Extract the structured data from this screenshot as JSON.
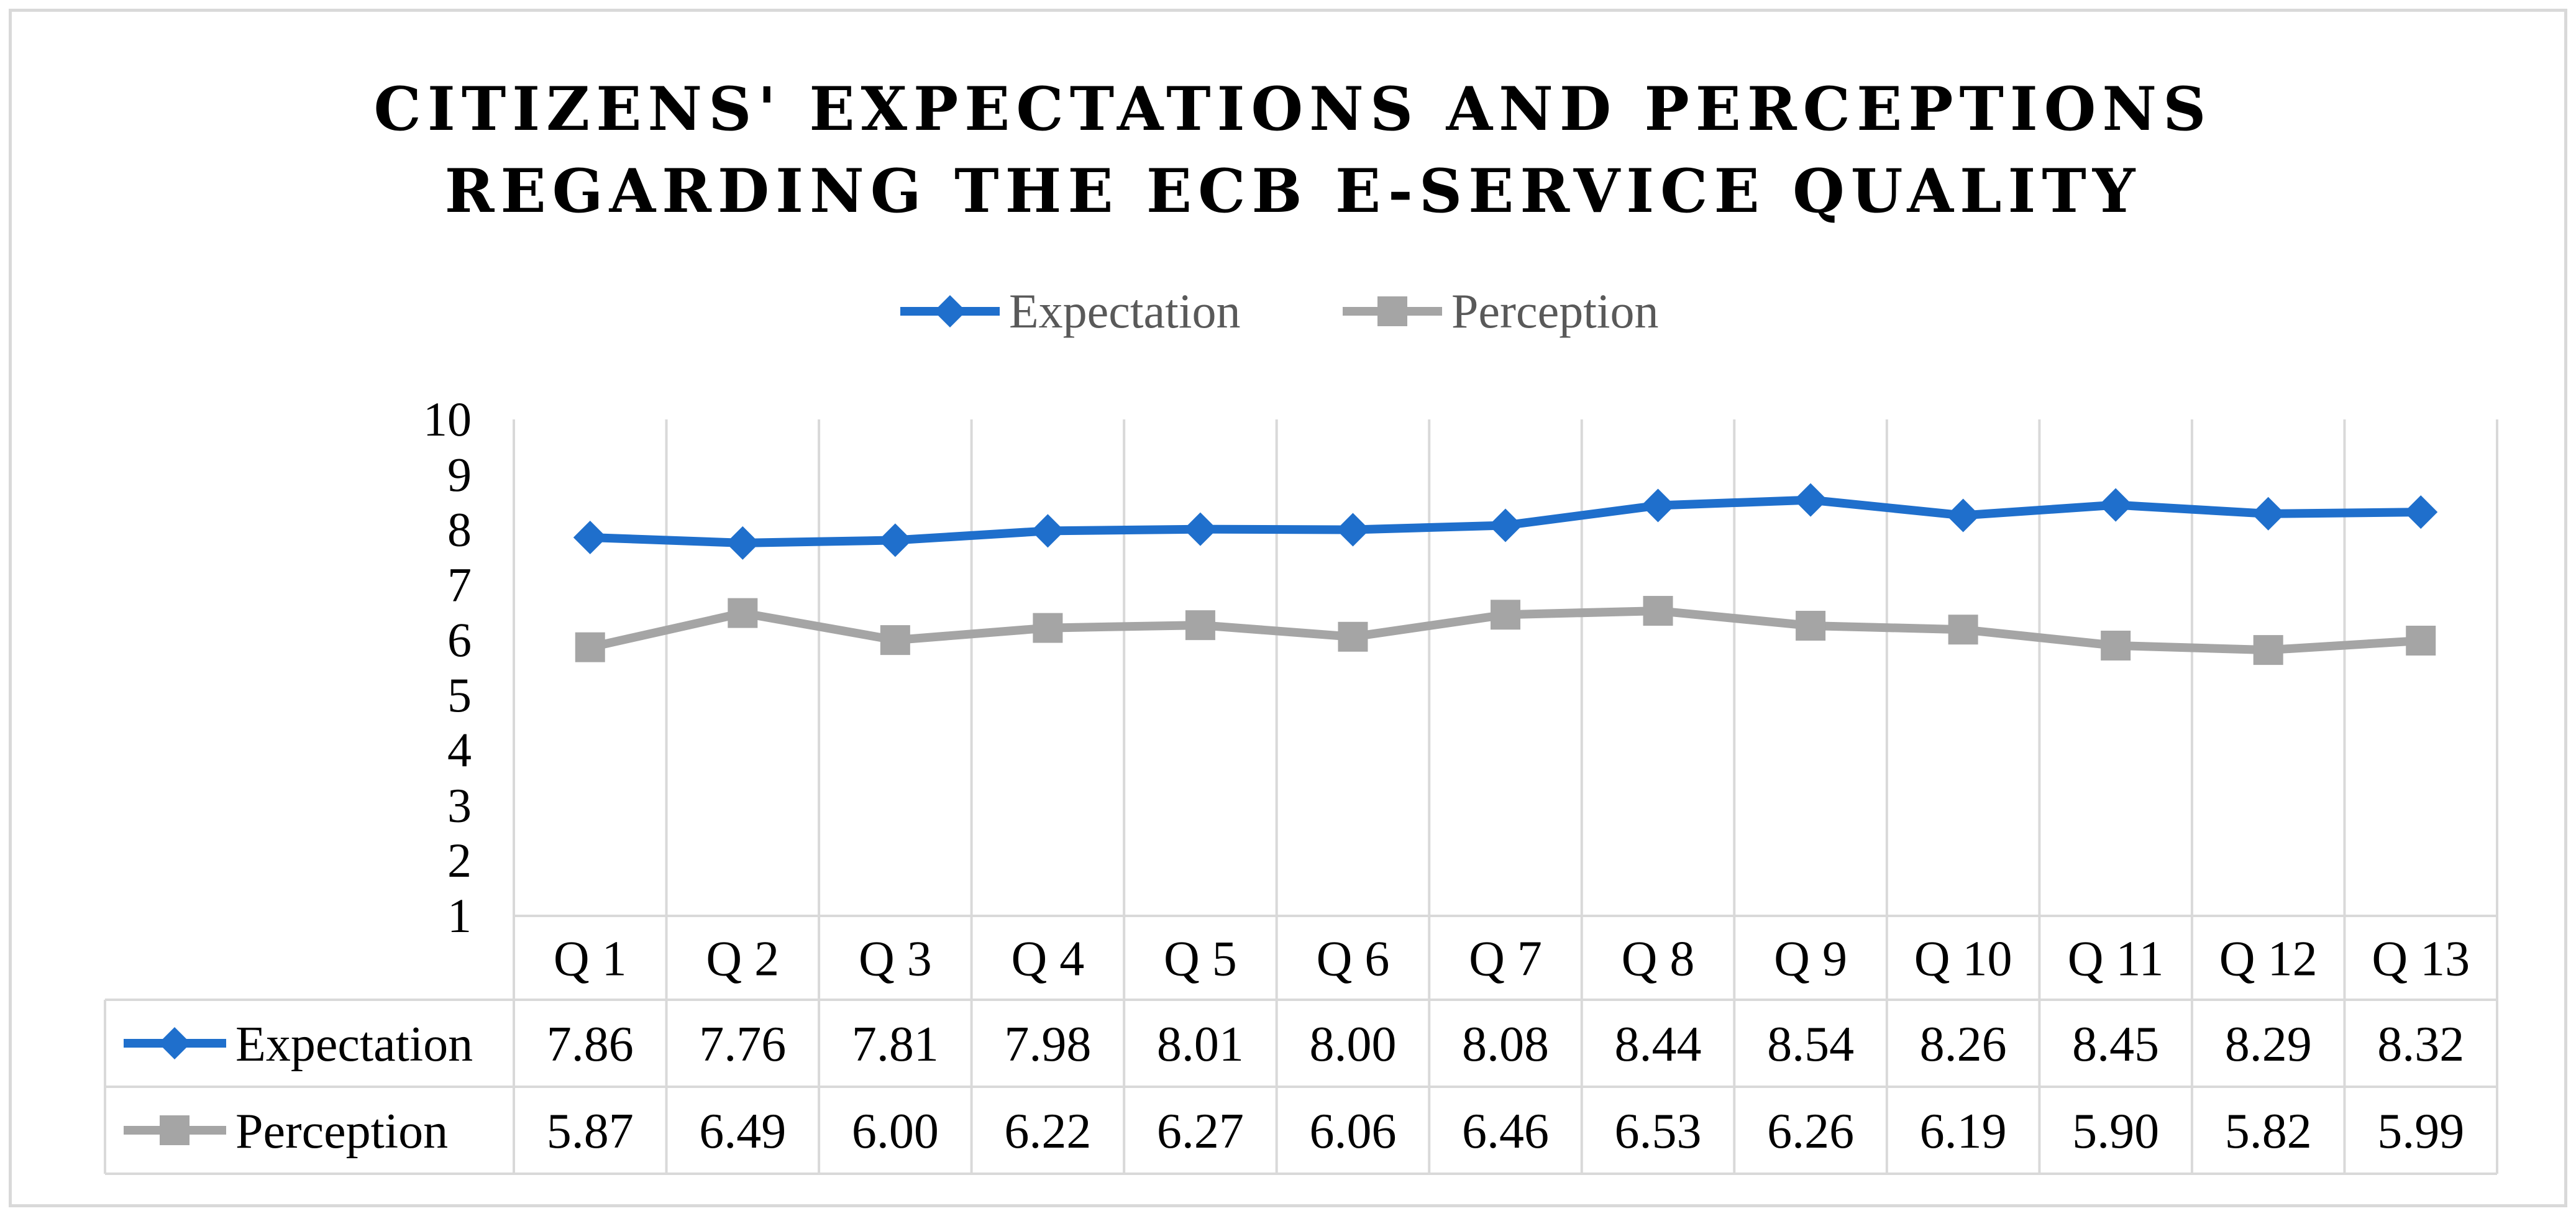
{
  "chart_data": {
    "type": "line",
    "title": [
      "CITIZENS' EXPECTATIONS AND PERCEPTIONS",
      "REGARDING THE ECB E-SERVICE QUALITY"
    ],
    "categories": [
      "Q 1",
      "Q 2",
      "Q 3",
      "Q 4",
      "Q 5",
      "Q 6",
      "Q 7",
      "Q 8",
      "Q 9",
      "Q 10",
      "Q 11",
      "Q 12",
      "Q 13"
    ],
    "series": [
      {
        "name": "Expectation",
        "color": "#1f6fcc",
        "marker": "diamond",
        "values": [
          7.86,
          7.76,
          7.81,
          7.98,
          8.01,
          8.0,
          8.08,
          8.44,
          8.54,
          8.26,
          8.45,
          8.29,
          8.32
        ],
        "table_values": [
          "7.86",
          "7.76",
          "7.81",
          "7.98",
          "8.01",
          "8.00",
          "8.08",
          "8.44",
          "8.54",
          "8.26",
          "8.45",
          "8.29",
          "8.32"
        ]
      },
      {
        "name": "Perception",
        "color": "#a5a5a5",
        "marker": "square",
        "values": [
          5.87,
          6.49,
          6.0,
          6.22,
          6.27,
          6.06,
          6.46,
          6.53,
          6.26,
          6.19,
          5.9,
          5.82,
          5.99
        ],
        "table_values": [
          "5.87",
          "6.49",
          "6.00",
          "6.22",
          "6.27",
          "6.06",
          "6.46",
          "6.53",
          "6.26",
          "6.19",
          "5.90",
          "5.82",
          "5.99"
        ]
      }
    ],
    "yticks": [
      "1",
      "2",
      "3",
      "4",
      "5",
      "6",
      "7",
      "8",
      "9",
      "10"
    ],
    "ylim": [
      1,
      10
    ],
    "grid": true,
    "legend": "top-center",
    "data_table": true
  }
}
